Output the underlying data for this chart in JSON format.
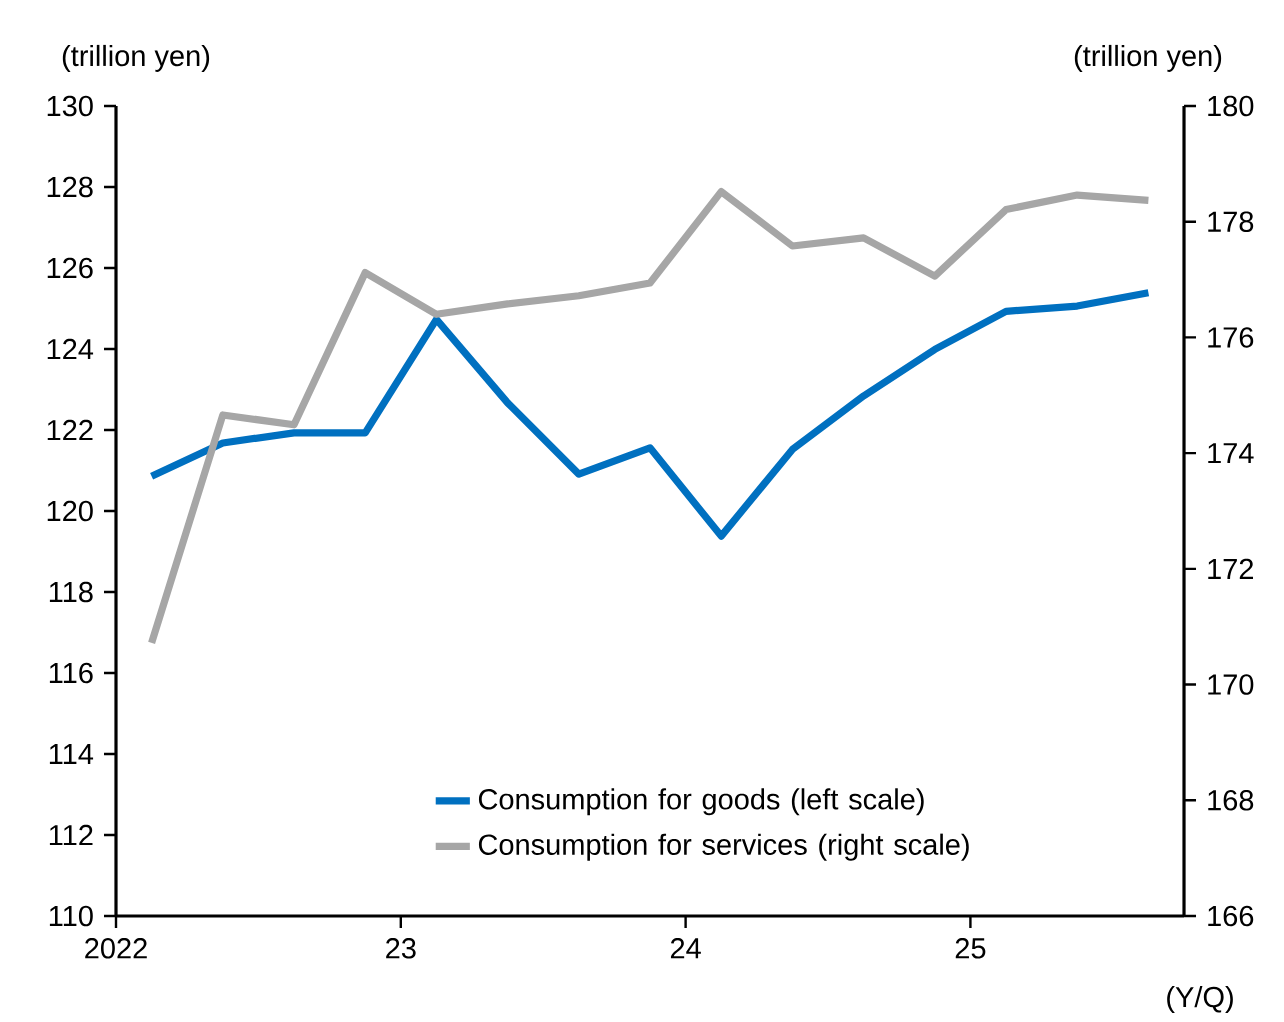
{
  "chart_data": {
    "type": "line",
    "xlabel": "(Y/Q)",
    "ylabel": "(trillion yen)",
    "y2label": "(trillion yen)",
    "x": [
      2022.125,
      2022.375,
      2022.625,
      2022.875,
      2023.125,
      2023.375,
      2023.625,
      2023.875,
      2024.125,
      2024.375,
      2024.625,
      2024.875,
      2025.125,
      2025.375,
      2025.625
    ],
    "xlim": [
      2022,
      2025.75
    ],
    "xticks": [
      {
        "value": 2022,
        "label": "2022"
      },
      {
        "value": 2023,
        "label": "23"
      },
      {
        "value": 2024,
        "label": "24"
      },
      {
        "value": 2025,
        "label": "25"
      }
    ],
    "ylim": [
      110,
      130
    ],
    "yticks": [
      110,
      112,
      114,
      116,
      118,
      120,
      122,
      124,
      126,
      128,
      130
    ],
    "y2lim": [
      166,
      180
    ],
    "y2ticks": [
      166,
      168,
      170,
      172,
      174,
      176,
      178,
      180
    ],
    "series": [
      {
        "name": "Consumption for goods (left scale)",
        "color": "#0070c0",
        "values": [
          120.86,
          121.68,
          121.93,
          121.93,
          124.73,
          122.67,
          120.91,
          121.56,
          119.38,
          121.52,
          122.84,
          123.99,
          124.93,
          125.06,
          125.39
        ]
      },
      {
        "name": "Consumption for services (right scale)",
        "color": "#a6a6a6",
        "axis": "y2",
        "values": [
          170.72,
          174.66,
          174.49,
          177.12,
          176.4,
          176.58,
          176.72,
          176.94,
          178.52,
          177.58,
          177.72,
          177.06,
          178.21,
          178.46,
          178.37
        ]
      }
    ],
    "legend": "bottom",
    "marker": "none",
    "line_style": "solid",
    "grid": false
  }
}
